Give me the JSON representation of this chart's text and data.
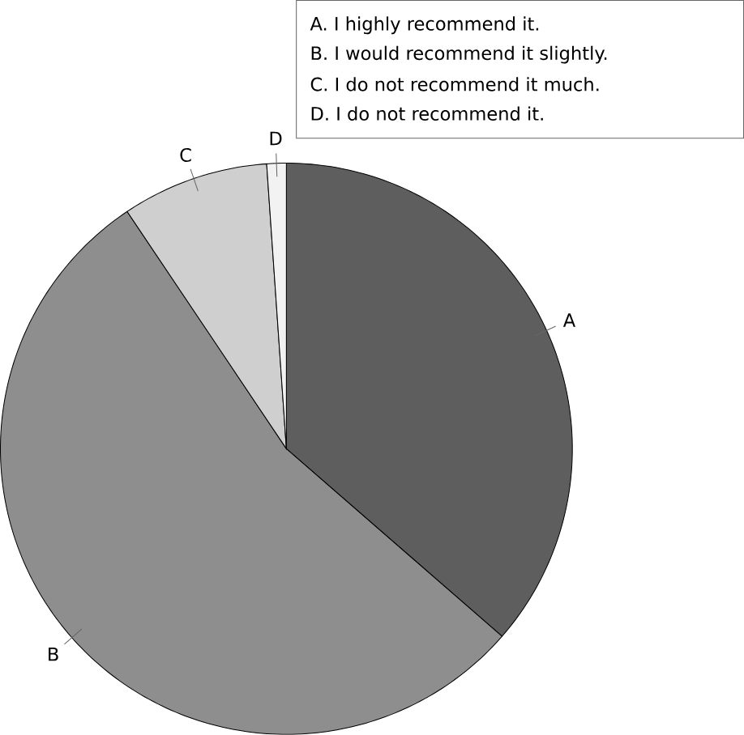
{
  "chart_data": {
    "type": "pie",
    "categories": [
      "A",
      "B",
      "C",
      "D"
    ],
    "values": [
      36.4,
      54.2,
      8.3,
      1.1
    ],
    "colors": [
      "#5e5e5e",
      "#8e8e8e",
      "#cfcfcf",
      "#f2f2f2"
    ],
    "annotations": [
      "A. I highly recommend it.",
      "B. I would recommend it slightly.",
      "C. I do not recommend it much.",
      "D. I do not recommend it."
    ]
  }
}
